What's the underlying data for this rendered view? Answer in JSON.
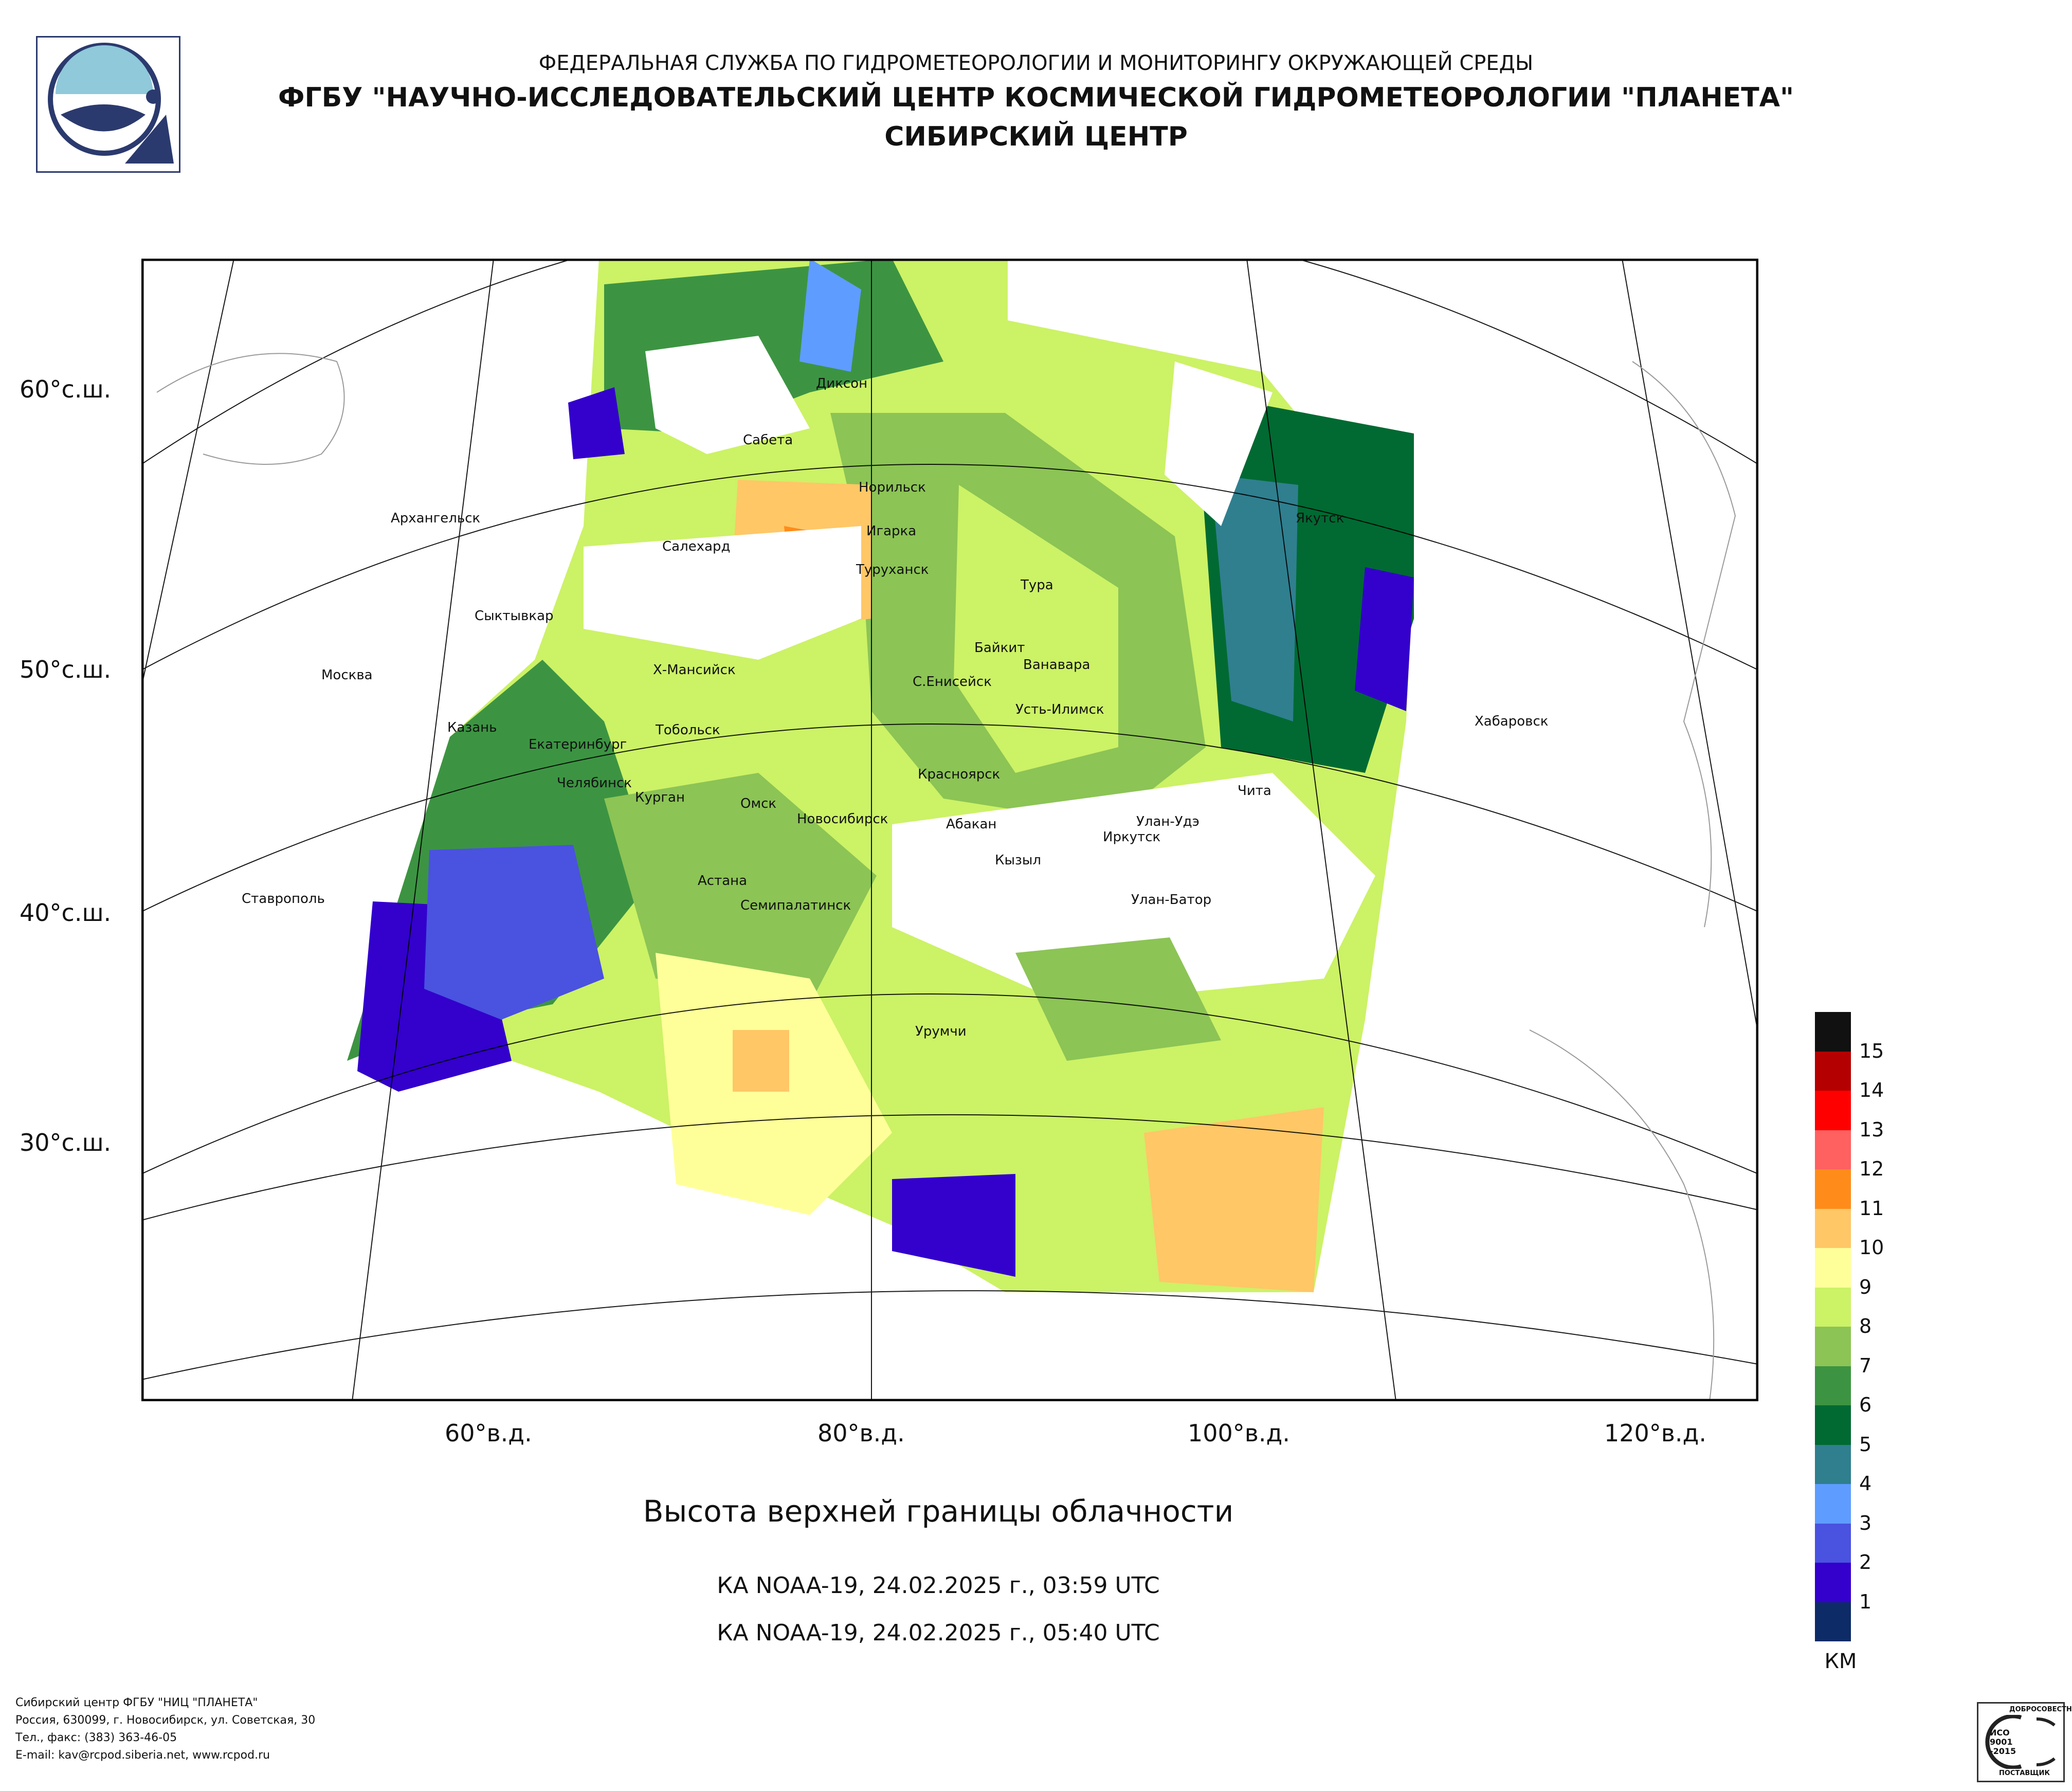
{
  "header": {
    "line1": "ФЕДЕРАЛЬНАЯ СЛУЖБА ПО ГИДРОМЕТЕОРОЛОГИИ И МОНИТОРИНГУ ОКРУЖАЮЩЕЙ СРЕДЫ",
    "line2": "ФГБУ \"НАУЧНО-ИССЛЕДОВАТЕЛЬСКИЙ ЦЕНТР КОСМИЧЕСКОЙ ГИДРОМЕТЕОРОЛОГИИ \"ПЛАНЕТА\"",
    "line3": "СИБИРСКИЙ ЦЕНТР"
  },
  "map": {
    "latitude_labels": [
      "60°с.ш.",
      "50°с.ш.",
      "40°с.ш.",
      "30°с.ш."
    ],
    "longitude_labels": [
      "60°в.д.",
      "80°в.д.",
      "100°в.д.",
      "120°в.д."
    ],
    "cities": [
      "Диксон",
      "Сабета",
      "Норильск",
      "Игарка",
      "Архангельск",
      "Салехард",
      "Туруханск",
      "Тура",
      "Якутск",
      "Сыктывкар",
      "Байкит",
      "Ванавара",
      "Москва",
      "Х-Мансийск",
      "С.Енисейск",
      "Усть-Илимск",
      "Казань",
      "Тобольск",
      "Екатеринбург",
      "Хабаровск",
      "Челябинск",
      "Курган",
      "Красноярск",
      "Омск",
      "Новосибирск",
      "Чита",
      "Абакан",
      "Улан-Удэ",
      "Иркутск",
      "Кызыл",
      "Астана",
      "Ставрополь",
      "Семипалатинск",
      "Улан-Батор",
      "Урумчи"
    ]
  },
  "title": "Высота верхней границы облачности",
  "passes": [
    "КА NOAA-19, 24.02.2025 г., 03:59 UTC",
    "КА NOAA-19, 24.02.2025 г., 05:40 UTC"
  ],
  "colorbar": {
    "unit": "КМ",
    "labels": [
      "15",
      "14",
      "13",
      "12",
      "11",
      "10",
      "9",
      "8",
      "7",
      "6",
      "5",
      "4",
      "3",
      "2",
      "1"
    ],
    "colors": [
      "#111111",
      "#b40000",
      "#ff0000",
      "#ff6060",
      "#ff8c1a",
      "#ffc766",
      "#ffff99",
      "#ccf266",
      "#8cc455",
      "#3c9442",
      "#006a32",
      "#2f7f8f",
      "#5f9cff",
      "#4a52e0",
      "#3300cc",
      "#0d2b66"
    ]
  },
  "footer": [
    "Сибирский центр ФГБУ \"НИЦ \"ПЛАНЕТА\"",
    "Россия, 630099, г. Новосибирск, ул. Советская, 30",
    "Тел., факс: (383) 363-46-05",
    "E-mail: kav@rcpod.siberia.net, www.rcpod.ru"
  ],
  "certificate": {
    "top": "ДОБРОСОВЕСТНЫЙ",
    "code": "ИСО 9001 -2015",
    "bottom": "ПОСТАВЩИК"
  }
}
